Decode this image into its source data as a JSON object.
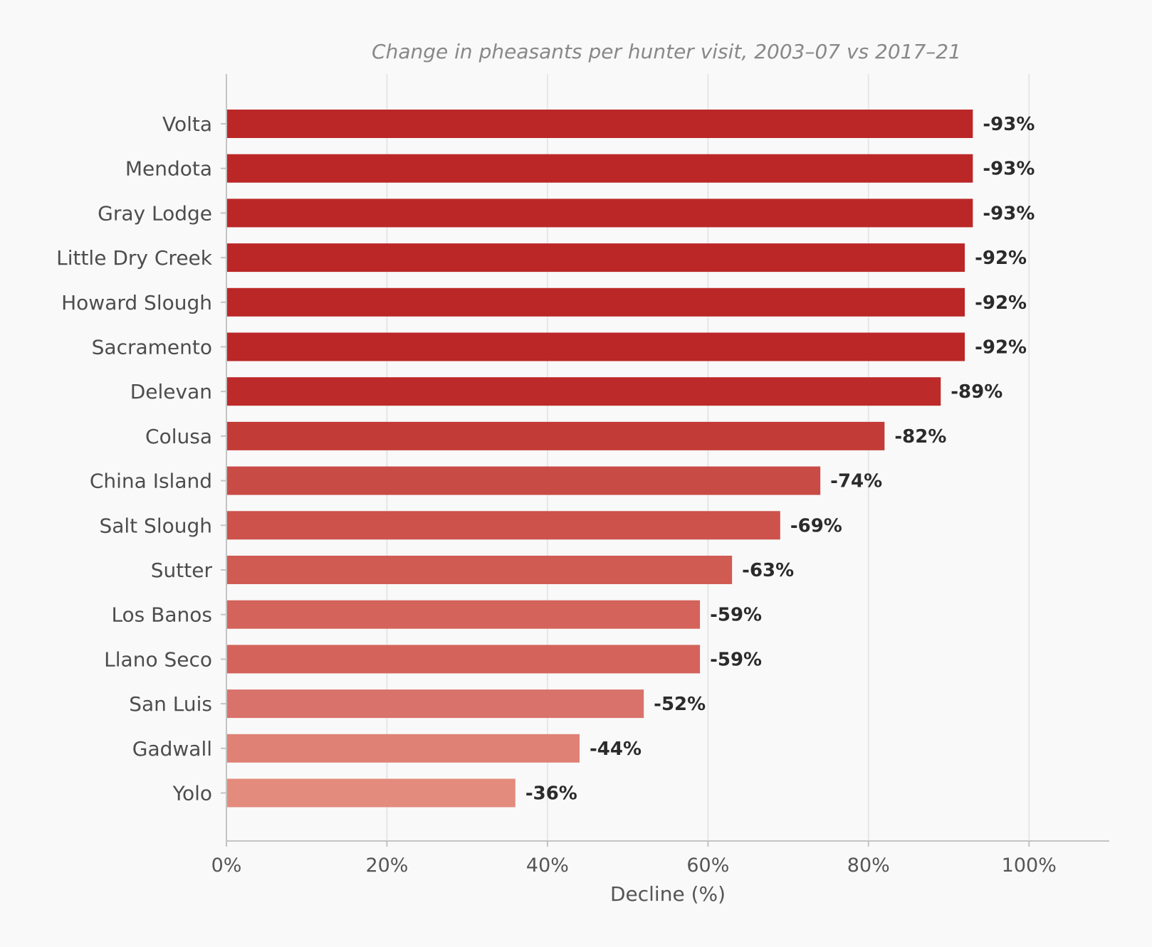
{
  "chart_data": {
    "type": "bar",
    "orientation": "horizontal",
    "subtitle": "Change in pheasants per hunter visit, 2003–07 vs 2017–21",
    "xlabel": "Decline (%)",
    "ylabel": "",
    "xlim": [
      0,
      110
    ],
    "x_ticks": [
      0,
      20,
      40,
      60,
      80,
      100
    ],
    "x_tick_labels": [
      "0%",
      "20%",
      "40%",
      "60%",
      "80%",
      "100%"
    ],
    "grid": "vertical",
    "legend": "none",
    "categories": [
      "Volta",
      "Mendota",
      "Gray Lodge",
      "Little Dry Creek",
      "Howard Slough",
      "Sacramento",
      "Delevan",
      "Colusa",
      "China Island",
      "Salt Slough",
      "Sutter",
      "Los Banos",
      "Llano Seco",
      "San Luis",
      "Gadwall",
      "Yolo"
    ],
    "values": [
      93,
      93,
      93,
      92,
      92,
      92,
      89,
      82,
      74,
      69,
      63,
      59,
      59,
      52,
      44,
      36
    ],
    "value_labels": [
      "-93%",
      "-93%",
      "-93%",
      "-92%",
      "-92%",
      "-92%",
      "-89%",
      "-82%",
      "-74%",
      "-69%",
      "-63%",
      "-59%",
      "-59%",
      "-52%",
      "-44%",
      "-36%"
    ],
    "colors": [
      "#bb2727",
      "#bb2727",
      "#bb2727",
      "#bb2727",
      "#bb2727",
      "#bb2727",
      "#bd2a2a",
      "#c33b37",
      "#c94b45",
      "#cc524b",
      "#d05b53",
      "#d3635b",
      "#d3635b",
      "#d8726a",
      "#df8175",
      "#e38b7d"
    ],
    "gridline_color": "#e6e6e6",
    "axis_color": "#c4c4c4"
  }
}
